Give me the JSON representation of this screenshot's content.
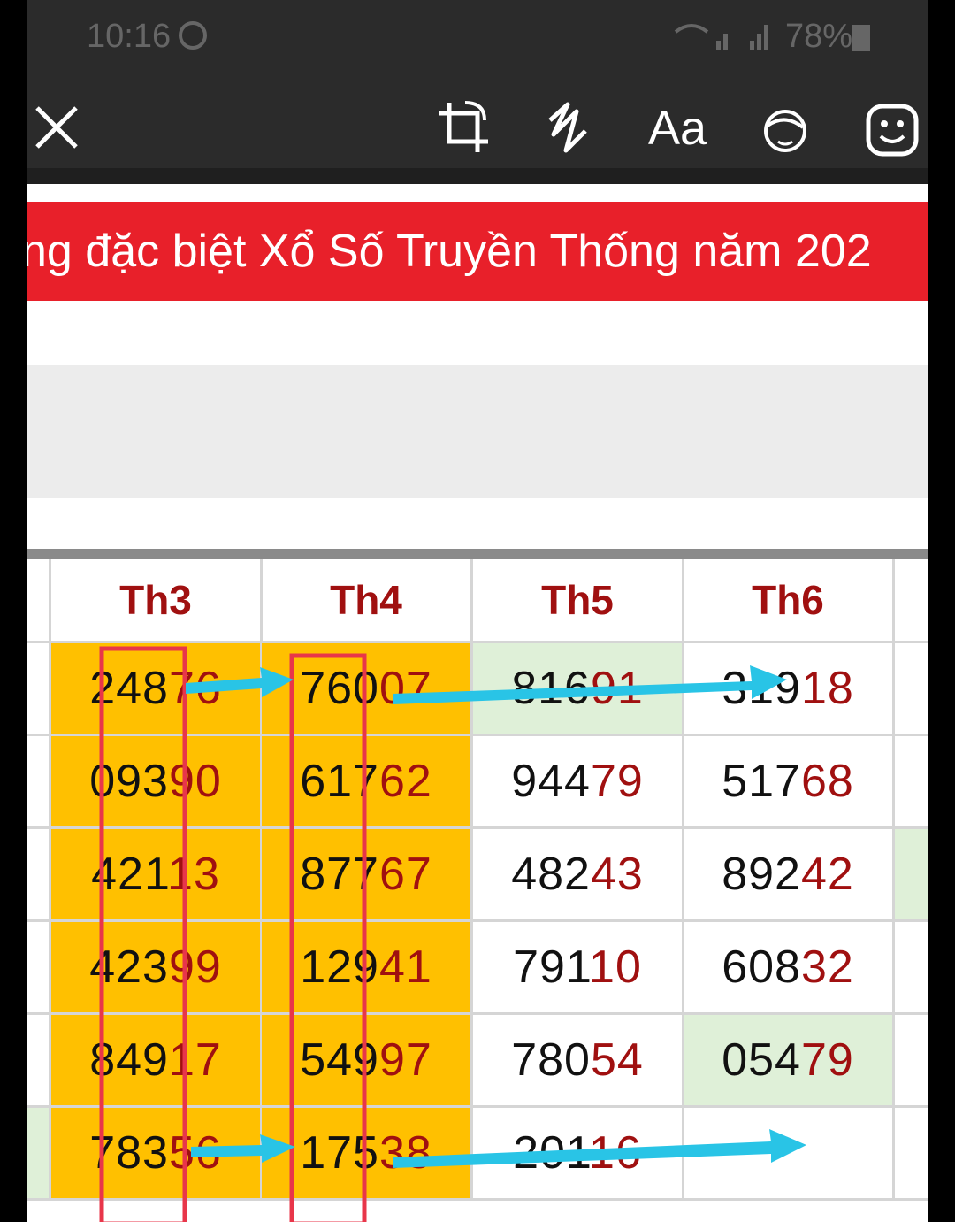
{
  "status_bar": {
    "time": "10:16",
    "battery": "78%"
  },
  "toolbar": {
    "text_tool": "Aa"
  },
  "banner": {
    "title": "ng đặc biệt Xổ Số Truyền Thống năm 202"
  },
  "table": {
    "headers": [
      "Th3",
      "Th4",
      "Th5",
      "Th6"
    ],
    "rows": [
      [
        [
          "248",
          "76"
        ],
        [
          "760",
          "07"
        ],
        [
          "816",
          "91"
        ],
        [
          "319",
          "18"
        ]
      ],
      [
        [
          "093",
          "90"
        ],
        [
          "617",
          "62"
        ],
        [
          "944",
          "79"
        ],
        [
          "517",
          "68"
        ]
      ],
      [
        [
          "421",
          "13"
        ],
        [
          "877",
          "67"
        ],
        [
          "482",
          "43"
        ],
        [
          "892",
          "42"
        ]
      ],
      [
        [
          "423",
          "99"
        ],
        [
          "129",
          "41"
        ],
        [
          "791",
          "10"
        ],
        [
          "608",
          "32"
        ]
      ],
      [
        [
          "849",
          "17"
        ],
        [
          "549",
          "97"
        ],
        [
          "780",
          "54"
        ],
        [
          "054",
          "79"
        ]
      ],
      [
        [
          "783",
          "56"
        ],
        [
          "175",
          "38"
        ],
        [
          "201",
          "16"
        ]
      ]
    ]
  }
}
